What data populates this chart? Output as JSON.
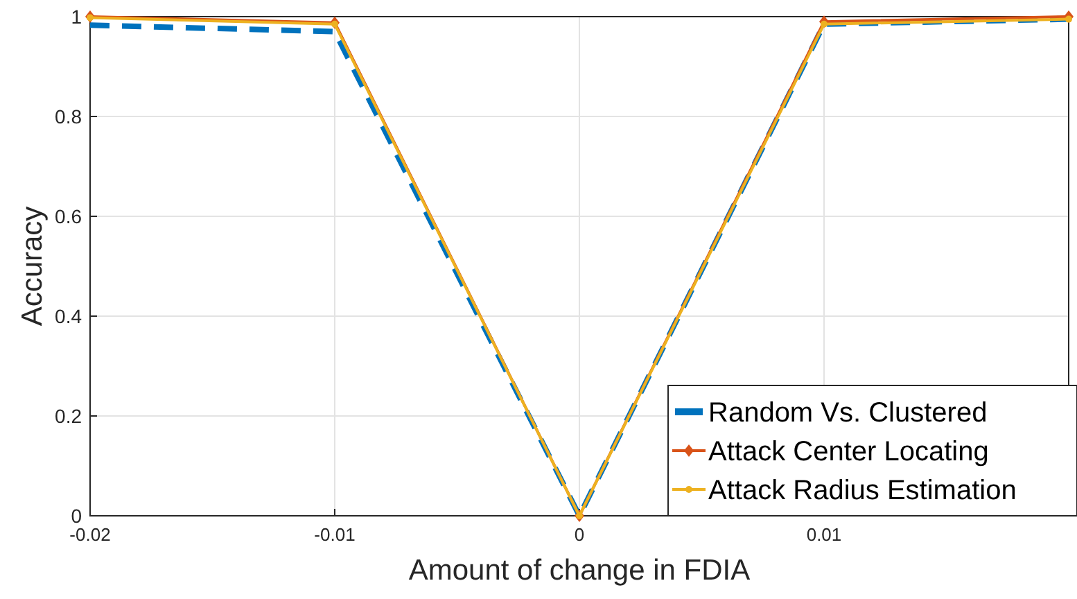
{
  "chart_data": {
    "type": "line",
    "xlabel": "Amount of change in FDIA",
    "ylabel": "Accuracy",
    "x": [
      -0.02,
      -0.01,
      0,
      0.01,
      0.02
    ],
    "xlim": [
      -0.02,
      0.02
    ],
    "xticks": [
      -0.02,
      -0.01,
      0,
      0.01
    ],
    "ylim": [
      0,
      1
    ],
    "yticks": [
      0,
      0.2,
      0.4,
      0.6,
      0.8,
      1
    ],
    "grid": true,
    "legend": "bottom right",
    "series": [
      {
        "name": "Random Vs. Clustered",
        "color": "#0072bd",
        "values": [
          0.983,
          0.97,
          0,
          0.985,
          0.995
        ],
        "line_style": "dashed",
        "marker": "none"
      },
      {
        "name": "Attack Center Locating",
        "color": "#d95319",
        "values": [
          1,
          0.988,
          0,
          0.99,
          1
        ],
        "line_style": "solid",
        "marker": "diamond"
      },
      {
        "name": "Attack Radius Estimation",
        "color": "#edb120",
        "values": [
          0.998,
          0.985,
          0,
          0.985,
          0.995
        ],
        "line_style": "solid",
        "marker": "circle"
      }
    ]
  }
}
